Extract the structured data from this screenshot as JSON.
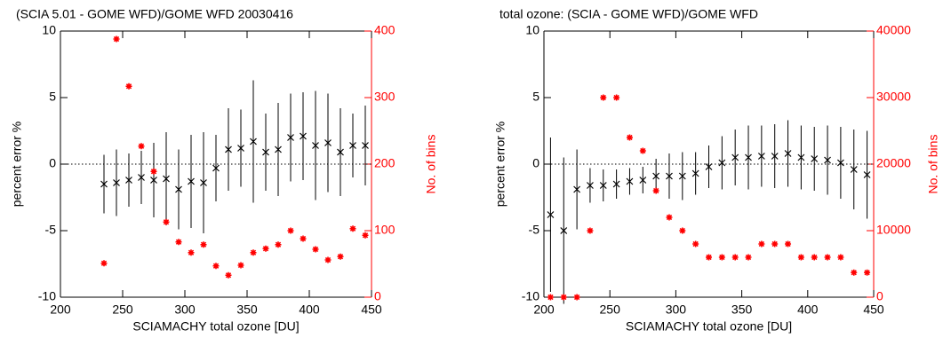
{
  "chart_data": [
    {
      "type": "scatter",
      "title": "(SCIA 5.01 - GOME WFD)/GOME WFD 20030416",
      "x_label": "SCIAMACHY total ozone [DU]",
      "y_label": "percent error %",
      "y2_label": "No. of bins",
      "x": [
        235,
        245,
        255,
        265,
        275,
        285,
        295,
        305,
        315,
        325,
        335,
        345,
        355,
        365,
        375,
        385,
        395,
        405,
        415,
        425,
        435,
        445
      ],
      "series": [
        {
          "color": "#000000",
          "marker": "x",
          "values": [
            -1.5,
            -1.4,
            -1.2,
            -1.0,
            -1.2,
            -1.1,
            -1.9,
            -1.3,
            -1.4,
            -0.3,
            1.1,
            1.2,
            1.7,
            0.9,
            1.1,
            2.0,
            2.1,
            1.4,
            1.6,
            0.9,
            1.4,
            1.4
          ],
          "errors": [
            2.2,
            2.5,
            2.0,
            2.0,
            2.8,
            3.5,
            3.0,
            3.5,
            3.8,
            2.5,
            3.1,
            2.9,
            4.6,
            2.9,
            3.5,
            3.3,
            3.3,
            4.1,
            3.7,
            3.3,
            2.4,
            3.0
          ]
        },
        {
          "color": "#ff0000",
          "marker": "asterisk",
          "axis": "y2",
          "values": [
            51,
            388,
            317,
            227,
            189,
            113,
            83,
            67,
            79,
            47,
            33,
            48,
            67,
            73,
            79,
            100,
            88,
            72,
            56,
            61,
            103,
            93
          ]
        }
      ],
      "xlim": [
        200,
        450
      ],
      "xticks": [
        200,
        250,
        300,
        350,
        400,
        450
      ],
      "ylim": [
        -10,
        10
      ],
      "yticks": [
        -10,
        -5,
        0,
        5,
        10
      ],
      "y2lim": [
        0,
        400
      ],
      "y2ticks": [
        0,
        100,
        200,
        300,
        400
      ],
      "y2color": "#ff0000",
      "hline": 0
    },
    {
      "type": "scatter",
      "title": "total ozone: (SCIA - GOME WFD)/GOME WFD",
      "x_label": "SCIAMACHY total ozone [DU]",
      "y_label": "percent error %",
      "y2_label": "No. of bins",
      "x": [
        205,
        215,
        225,
        235,
        245,
        255,
        265,
        275,
        285,
        295,
        305,
        315,
        325,
        335,
        345,
        355,
        365,
        375,
        385,
        395,
        405,
        415,
        425,
        435,
        445
      ],
      "series": [
        {
          "color": "#000000",
          "marker": "x",
          "values": [
            -3.8,
            -5.0,
            -1.9,
            -1.6,
            -1.6,
            -1.5,
            -1.3,
            -1.2,
            -0.9,
            -0.9,
            -0.9,
            -0.7,
            -0.2,
            0.1,
            0.5,
            0.5,
            0.6,
            0.6,
            0.8,
            0.5,
            0.4,
            0.3,
            0.1,
            -0.4,
            -0.8
          ],
          "errors": [
            5.8,
            5.5,
            3.0,
            1.3,
            1.2,
            1.1,
            1.0,
            1.0,
            1.3,
            1.7,
            1.8,
            1.6,
            1.6,
            2.0,
            2.1,
            2.4,
            2.3,
            2.4,
            2.5,
            2.4,
            2.4,
            2.6,
            2.7,
            3.0,
            3.3
          ]
        },
        {
          "color": "#ff0000",
          "marker": "asterisk",
          "axis": "y2",
          "values": [
            0,
            0,
            0,
            10000,
            30000,
            30000,
            24000,
            22000,
            16000,
            12000,
            10000,
            8000,
            6000,
            6000,
            6000,
            6000,
            8000,
            8000,
            8000,
            6000,
            6000,
            6000,
            6000,
            3700,
            3700
          ]
        }
      ],
      "xlim": [
        200,
        450
      ],
      "xticks": [
        200,
        250,
        300,
        350,
        400,
        450
      ],
      "ylim": [
        -10,
        10
      ],
      "yticks": [
        -10,
        -5,
        0,
        5,
        10
      ],
      "y2lim": [
        0,
        40000
      ],
      "y2ticks": [
        0,
        10000,
        20000,
        30000,
        40000
      ],
      "y2color": "#ff0000",
      "hline": 0
    }
  ]
}
